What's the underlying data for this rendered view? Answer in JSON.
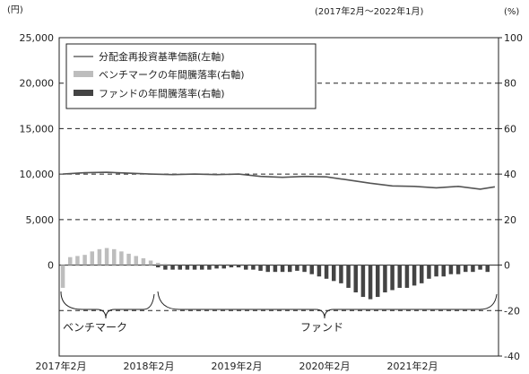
{
  "chart_data": {
    "type": "line",
    "period": "(2017年2月～2022年1月)",
    "left_unit": "(円)",
    "right_unit": "(%)",
    "left_ylim": [
      0,
      25000
    ],
    "right_ylim": [
      -40,
      100
    ],
    "left_ticks": [
      "25,000",
      "20,000",
      "15,000",
      "10,000",
      "5,000",
      "0"
    ],
    "right_ticks": [
      "100",
      "80",
      "60",
      "40",
      "20",
      "0",
      "-20",
      "-40"
    ],
    "x_ticks": [
      "2017年2月",
      "2018年2月",
      "2019年2月",
      "2020年2月",
      "2021年2月"
    ],
    "legend": [
      {
        "label": "分配金再投資基準価額(左軸)",
        "color": "#666666",
        "kind": "line"
      },
      {
        "label": "ベンチマークの年間騰落率(右軸)",
        "color": "#bdbdbd",
        "kind": "bar"
      },
      {
        "label": "ファンドの年間騰落率(右軸)",
        "color": "#444444",
        "kind": "bar"
      }
    ],
    "annotations": {
      "benchmark": "ベンチマーク",
      "fund": "ファンド"
    },
    "grid": "dashed-horizontal",
    "series": [
      {
        "name": "分配金再投資基準価額(左軸)",
        "axis": "left",
        "x": [
          "2017-02",
          "2017-05",
          "2017-08",
          "2017-11",
          "2018-02",
          "2018-05",
          "2018-08",
          "2018-11",
          "2019-02",
          "2019-05",
          "2019-08",
          "2019-11",
          "2020-02",
          "2020-05",
          "2020-08",
          "2020-11",
          "2021-02",
          "2021-05",
          "2021-08",
          "2021-11",
          "2022-01"
        ],
        "values": [
          10000,
          10150,
          10200,
          10100,
          10000,
          9950,
          10000,
          9950,
          10000,
          9750,
          9650,
          9750,
          9700,
          9350,
          9000,
          8700,
          8650,
          8500,
          8650,
          8350,
          8600
        ]
      },
      {
        "name": "ベンチマークの年間騰落率(右軸)",
        "axis": "right",
        "months": [
          "2017-02",
          "2017-03",
          "2017-04",
          "2017-05",
          "2017-06",
          "2017-07",
          "2017-08",
          "2017-09",
          "2017-10",
          "2017-11",
          "2017-12",
          "2018-01",
          "2018-02",
          "2018-03",
          "2018-04"
        ],
        "values": [
          -10,
          3.5,
          4,
          4.5,
          6,
          7,
          7.5,
          7,
          6,
          5,
          4,
          3,
          2,
          1,
          0.5
        ]
      },
      {
        "name": "ファンドの年間騰落率(右軸)",
        "axis": "right",
        "months": [
          "2018-03",
          "2018-04",
          "2018-05",
          "2018-06",
          "2018-07",
          "2018-08",
          "2018-09",
          "2018-10",
          "2018-11",
          "2018-12",
          "2019-01",
          "2019-02",
          "2019-03",
          "2019-04",
          "2019-05",
          "2019-06",
          "2019-07",
          "2019-08",
          "2019-09",
          "2019-10",
          "2019-11",
          "2019-12",
          "2020-01",
          "2020-02",
          "2020-03",
          "2020-04",
          "2020-05",
          "2020-06",
          "2020-07",
          "2020-08",
          "2020-09",
          "2020-10",
          "2020-11",
          "2020-12",
          "2021-01",
          "2021-02",
          "2021-03",
          "2021-04",
          "2021-05",
          "2021-06",
          "2021-07",
          "2021-08",
          "2021-09",
          "2021-10",
          "2021-11",
          "2021-12"
        ],
        "values": [
          -1,
          -2,
          -2,
          -2,
          -2,
          -2,
          -2,
          -2,
          -1.5,
          -1.5,
          -1,
          -1,
          -2,
          -2,
          -2.5,
          -3,
          -3,
          -3,
          -3,
          -2.5,
          -3,
          -4,
          -5,
          -6,
          -7,
          -8,
          -10,
          -12,
          -14,
          -15,
          -14,
          -12,
          -11,
          -10,
          -10,
          -9,
          -8,
          -6,
          -5,
          -5,
          -4,
          -4,
          -3,
          -3,
          -2,
          -3
        ]
      }
    ]
  }
}
